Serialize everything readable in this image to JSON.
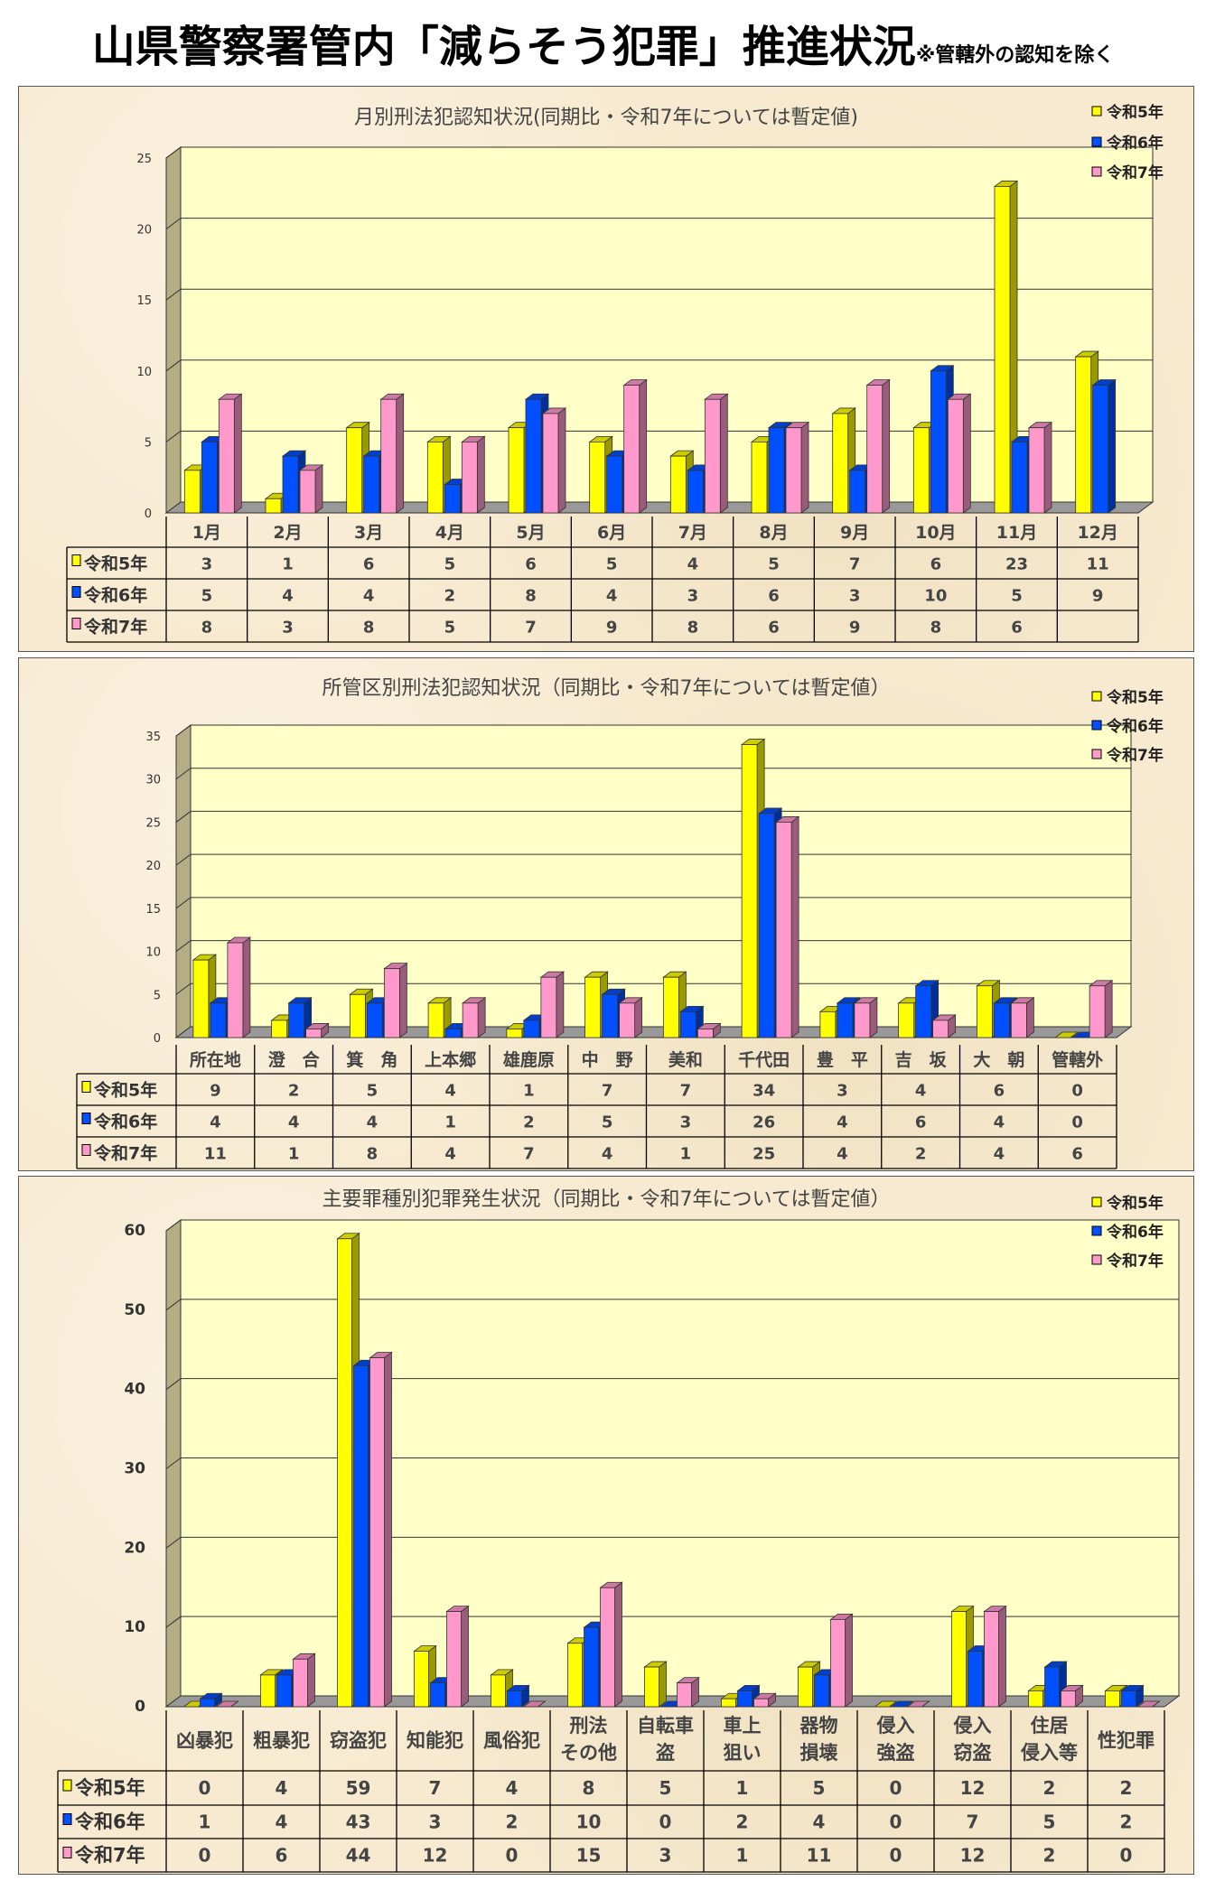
{
  "header": {
    "title": "山県警察署管内「減らそう犯罪」推進状況",
    "note": "※管轄外の認知を除く"
  },
  "colors": {
    "令和5年": "#ffff00",
    "令和6年": "#0050ff",
    "令和7年": "#ff99cc",
    "plot_background": "#ffffc8",
    "panel_background": "#f7ead0"
  },
  "chart_data": [
    {
      "type": "bar",
      "title": "月別刑法犯認知状況(同期比・令和7年については暫定値)",
      "ylim": [
        0,
        25
      ],
      "yticks": [
        0,
        5,
        10,
        15,
        20,
        25
      ],
      "grid": true,
      "legend": "top-right",
      "categories": [
        "1月",
        "2月",
        "3月",
        "4月",
        "5月",
        "6月",
        "7月",
        "8月",
        "9月",
        "10月",
        "11月",
        "12月"
      ],
      "series": [
        {
          "name": "令和5年",
          "values": [
            3,
            1,
            6,
            5,
            6,
            5,
            4,
            5,
            7,
            6,
            23,
            11
          ]
        },
        {
          "name": "令和6年",
          "values": [
            5,
            4,
            4,
            2,
            8,
            4,
            3,
            6,
            3,
            10,
            5,
            9
          ]
        },
        {
          "name": "令和7年",
          "values": [
            8,
            3,
            8,
            5,
            7,
            9,
            8,
            6,
            9,
            8,
            6,
            null
          ]
        }
      ]
    },
    {
      "type": "bar",
      "title": "所管区別刑法犯認知状況（同期比・令和7年については暫定値）",
      "ylim": [
        0,
        35
      ],
      "yticks": [
        0,
        5,
        10,
        15,
        20,
        25,
        30,
        35
      ],
      "grid": true,
      "legend": "top-right",
      "categories": [
        "所在地",
        "澄　合",
        "箕　角",
        "上本郷",
        "雄鹿原",
        "中　野",
        "美和",
        "千代田",
        "豊　平",
        "吉　坂",
        "大　朝",
        "管轄外"
      ],
      "series": [
        {
          "name": "令和5年",
          "values": [
            9,
            2,
            5,
            4,
            1,
            7,
            7,
            34,
            3,
            4,
            6,
            0
          ]
        },
        {
          "name": "令和6年",
          "values": [
            4,
            4,
            4,
            1,
            2,
            5,
            3,
            26,
            4,
            6,
            4,
            0
          ]
        },
        {
          "name": "令和7年",
          "values": [
            11,
            1,
            8,
            4,
            7,
            4,
            1,
            25,
            4,
            2,
            4,
            6
          ]
        }
      ]
    },
    {
      "type": "bar",
      "title": "主要罪種別犯罪発生状況（同期比・令和7年については暫定値）",
      "ylim": [
        0,
        60
      ],
      "yticks": [
        0,
        10,
        20,
        30,
        40,
        50,
        60
      ],
      "grid": true,
      "legend": "top-right",
      "categories": [
        "凶暴犯",
        "粗暴犯",
        "窃盗犯",
        "知能犯",
        "風俗犯",
        "刑法\nその他",
        "自転車\n盗",
        "車上\n狙い",
        "器物\n損壊",
        "侵入\n強盗",
        "侵入\n窃盗",
        "住居\n侵入等",
        "性犯罪"
      ],
      "series": [
        {
          "name": "令和5年",
          "values": [
            0,
            4,
            59,
            7,
            4,
            8,
            5,
            1,
            5,
            0,
            12,
            2,
            2
          ]
        },
        {
          "name": "令和6年",
          "values": [
            1,
            4,
            43,
            3,
            2,
            10,
            0,
            2,
            4,
            0,
            7,
            5,
            2
          ]
        },
        {
          "name": "令和7年",
          "values": [
            0,
            6,
            44,
            12,
            0,
            15,
            3,
            1,
            11,
            0,
            12,
            2,
            0
          ]
        }
      ]
    }
  ]
}
